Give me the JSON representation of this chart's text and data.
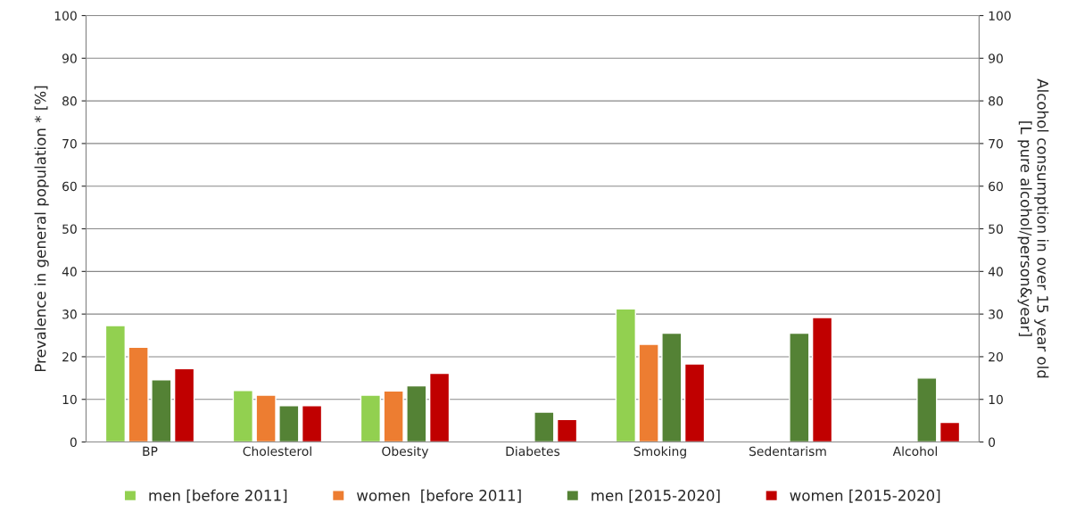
{
  "chart_data": {
    "type": "bar",
    "ylabel": "Prevalence in general population * [%]",
    "y2label": "Alcohol consumption in over 15 year old\n[L pure alcohol/person&year]",
    "categories": [
      "BP",
      "Cholesterol",
      "Obesity",
      "Diabetes",
      "Smoking",
      "Sedentarism",
      "Alcohol"
    ],
    "series": [
      {
        "name": "men [before 2011]",
        "color": "#92d050",
        "values": [
          27.3,
          12.1,
          11.0,
          null,
          31.2,
          null,
          null
        ]
      },
      {
        "name": "women  [before 2011]",
        "color": "#ed7d31",
        "values": [
          22.2,
          11.0,
          12.0,
          null,
          22.9,
          null,
          null
        ]
      },
      {
        "name": "men [2015-2020]",
        "color": "#548235",
        "values": [
          14.6,
          8.5,
          13.2,
          7.0,
          25.5,
          25.5,
          15.0
        ]
      },
      {
        "name": "women [2015-2020]",
        "color": "#c00000",
        "values": [
          17.2,
          8.5,
          16.1,
          5.3,
          18.3,
          29.2,
          4.6
        ]
      }
    ],
    "ylim": [
      0,
      100
    ],
    "yticks": [
      0,
      10,
      20,
      30,
      40,
      50,
      60,
      70,
      80,
      90,
      100
    ],
    "y2lim": [
      0,
      100
    ],
    "y2ticks": [
      0,
      10,
      20,
      30,
      40,
      50,
      60,
      70,
      80,
      90,
      100
    ],
    "grid": "y",
    "legend": "bottom"
  }
}
